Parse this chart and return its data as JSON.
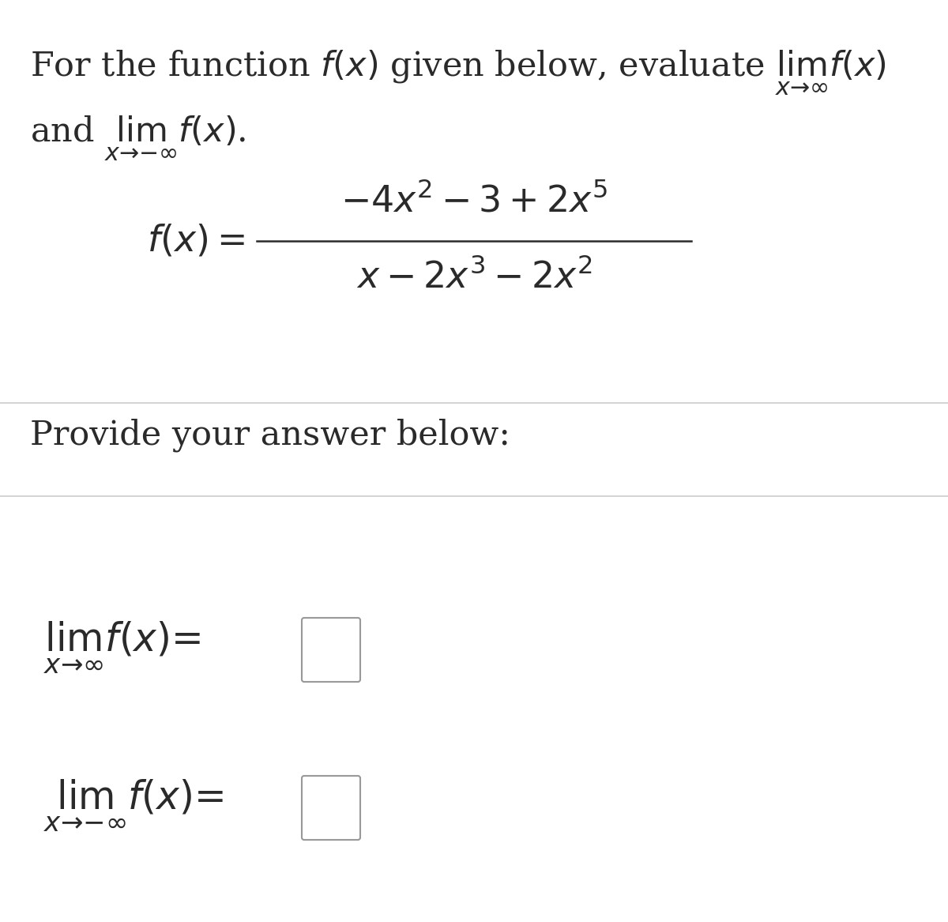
{
  "bg_color": "#ffffff",
  "text_color": "#2a2a2a",
  "line_color": "#cccccc",
  "fig_width": 12.0,
  "fig_height": 11.67,
  "dpi": 100
}
